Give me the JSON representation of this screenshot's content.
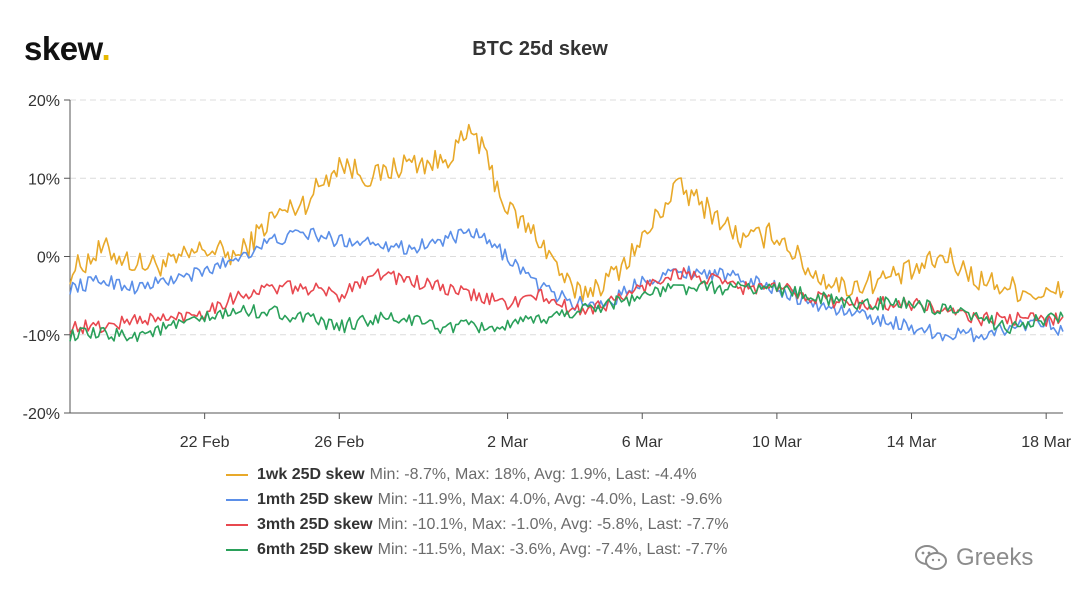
{
  "logo": {
    "text": "skew",
    "dot": "."
  },
  "watermark": {
    "text": "Greeks",
    "icon": "wechat-icon"
  },
  "chart_data": {
    "type": "line",
    "title": "BTC 25d skew",
    "xlabel": "",
    "ylabel": "",
    "ylim": [
      -20,
      20
    ],
    "yticks": [
      20,
      10,
      0,
      -10,
      -20
    ],
    "ytick_labels": [
      "20%",
      "10%",
      "0%",
      "-10%",
      "-20%"
    ],
    "xlim": [
      "2020-02-18",
      "2020-03-18T12:00"
    ],
    "xticks": [
      "2020-02-22",
      "2020-02-26",
      "2020-03-02",
      "2020-03-06",
      "2020-03-10",
      "2020-03-14",
      "2020-03-18"
    ],
    "xtick_labels": [
      "22 Feb",
      "26 Feb",
      "2 Mar",
      "6 Mar",
      "10 Mar",
      "14 Mar",
      "18 Mar"
    ],
    "grid": "horizontal dashed",
    "legend_position": "bottom",
    "x": [
      "2020-02-18",
      "2020-02-19",
      "2020-02-20",
      "2020-02-21",
      "2020-02-22",
      "2020-02-23",
      "2020-02-24",
      "2020-02-25",
      "2020-02-26",
      "2020-02-27",
      "2020-02-28",
      "2020-02-29",
      "2020-03-01",
      "2020-03-02",
      "2020-03-03",
      "2020-03-04",
      "2020-03-05",
      "2020-03-06",
      "2020-03-07",
      "2020-03-08",
      "2020-03-09",
      "2020-03-10",
      "2020-03-11",
      "2020-03-12",
      "2020-03-13",
      "2020-03-14",
      "2020-03-15",
      "2020-03-16",
      "2020-03-17",
      "2020-03-18",
      "2020-03-18T12:00"
    ],
    "series": [
      {
        "name": "1wk 25D skew",
        "color": "#e8a92a",
        "stats": "Min: -8.7%, Max: 18%, Avg: 1.9%, Last: -4.4%",
        "values": [
          -2,
          1,
          -1,
          -1,
          1,
          0,
          5,
          7,
          12,
          10,
          12,
          12,
          16,
          6,
          2,
          -5,
          -3,
          2,
          9,
          6,
          2,
          3,
          -2,
          -4,
          -3,
          -2,
          0,
          -3,
          -4,
          -5,
          -4.4
        ]
      },
      {
        "name": "1mth 25D skew",
        "color": "#5b8fe8",
        "stats": "Min: -11.9%, Max: 4.0%, Avg: -4.0%, Last: -9.6%",
        "values": [
          -4,
          -3,
          -4,
          -3,
          -2,
          0,
          2,
          3,
          2,
          2,
          1,
          2,
          3,
          0,
          -4,
          -6,
          -6,
          -3,
          -2,
          -2,
          -3,
          -4,
          -6,
          -7,
          -8,
          -9,
          -10,
          -10,
          -9,
          -8,
          -9.6
        ]
      },
      {
        "name": "3mth 25D skew",
        "color": "#e8484f",
        "stats": "Min: -10.1%, Max: -1.0%, Avg: -5.8%, Last: -7.7%",
        "values": [
          -9,
          -9,
          -8,
          -8,
          -7,
          -5,
          -4,
          -4,
          -5,
          -2,
          -3,
          -4,
          -5,
          -6,
          -5,
          -7,
          -6,
          -4,
          -2,
          -3,
          -4,
          -4,
          -5,
          -6,
          -6,
          -6,
          -7,
          -8,
          -8,
          -8,
          -7.7
        ]
      },
      {
        "name": "6mth 25D skew",
        "color": "#2aa05a",
        "stats": "Min: -11.5%, Max: -3.6%, Avg: -7.4%, Last: -7.7%",
        "values": [
          -10,
          -10,
          -10,
          -9,
          -8,
          -7,
          -7,
          -8,
          -9,
          -8,
          -8,
          -9,
          -9,
          -9,
          -8,
          -7,
          -6,
          -5,
          -4,
          -4,
          -4,
          -4,
          -5,
          -6,
          -6,
          -6,
          -7,
          -8,
          -9,
          -8,
          -7.7
        ]
      }
    ]
  }
}
